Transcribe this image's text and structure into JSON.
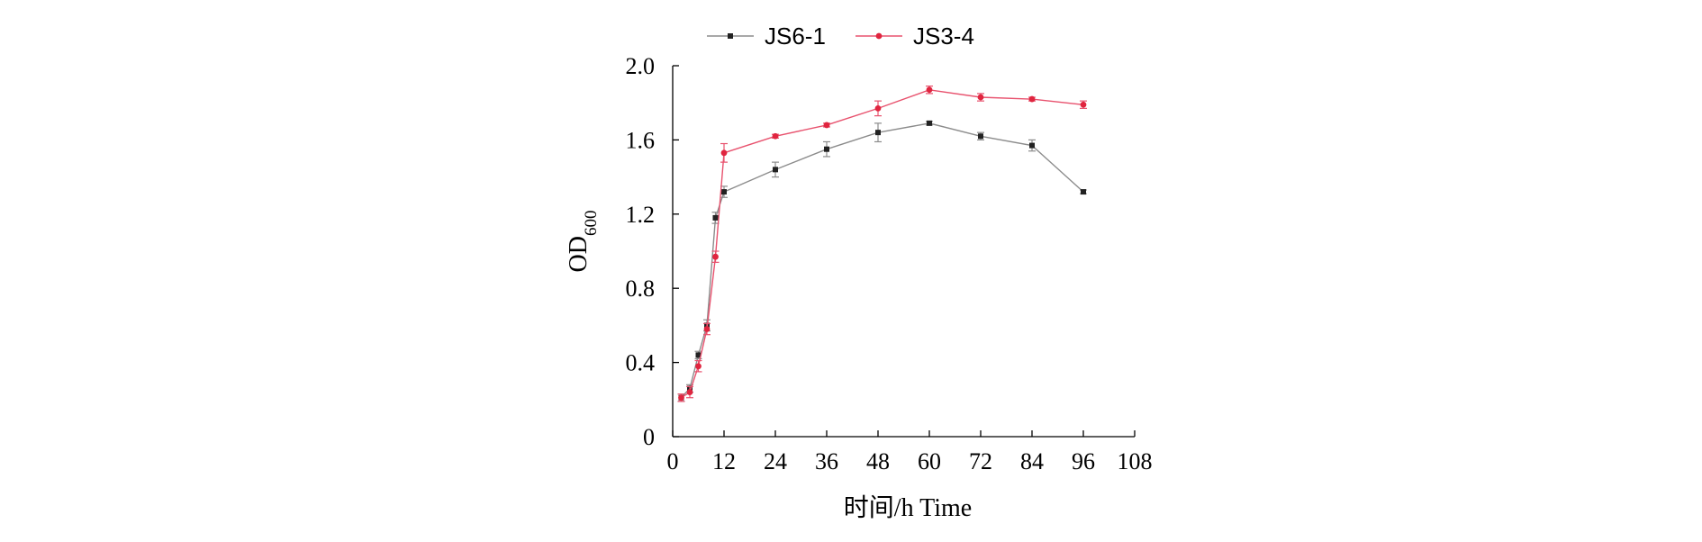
{
  "chart_data": {
    "type": "line",
    "title": "",
    "xlabel": "时间/h Time",
    "ylabel_main": "OD",
    "ylabel_sub": "600",
    "xlim": [
      0,
      108
    ],
    "ylim": [
      0,
      2.0
    ],
    "x_ticks": [
      0,
      12,
      24,
      36,
      48,
      60,
      72,
      84,
      96,
      108
    ],
    "y_ticks": [
      0,
      0.4,
      0.8,
      1.2,
      1.6,
      2.0
    ],
    "y_tick_labels": [
      "0",
      "0.4",
      "0.8",
      "1.2",
      "1.6",
      "2.0"
    ],
    "legend_position": "top",
    "grid": false,
    "series": [
      {
        "name": "JS6-1",
        "color": "#8c8c8c",
        "marker_color": "#222222",
        "marker": "square",
        "x": [
          2,
          4,
          6,
          8,
          10,
          12,
          24,
          36,
          48,
          60,
          72,
          84,
          96
        ],
        "y": [
          0.21,
          0.26,
          0.44,
          0.6,
          1.18,
          1.32,
          1.44,
          1.55,
          1.64,
          1.69,
          1.62,
          1.57,
          1.32
        ],
        "err": [
          0.02,
          0.02,
          0.02,
          0.03,
          0.03,
          0.03,
          0.04,
          0.04,
          0.05,
          0.01,
          0.02,
          0.03,
          0.01
        ]
      },
      {
        "name": "JS3-4",
        "color": "#e8526e",
        "marker_color": "#e0253f",
        "marker": "circle",
        "x": [
          2,
          4,
          6,
          8,
          10,
          12,
          24,
          36,
          48,
          60,
          72,
          84,
          96
        ],
        "y": [
          0.21,
          0.24,
          0.38,
          0.58,
          0.97,
          1.53,
          1.62,
          1.68,
          1.77,
          1.87,
          1.83,
          1.82,
          1.79
        ],
        "err": [
          0.02,
          0.03,
          0.03,
          0.03,
          0.03,
          0.05,
          0.01,
          0.01,
          0.04,
          0.02,
          0.02,
          0.01,
          0.02
        ]
      }
    ]
  }
}
